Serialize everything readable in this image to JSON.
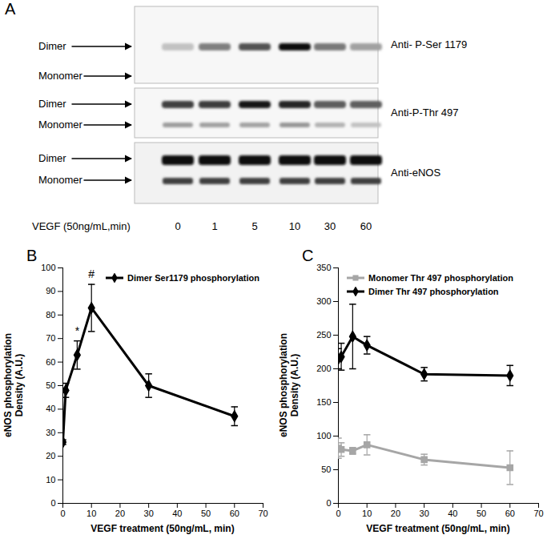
{
  "blot": {
    "panel": "A",
    "lane_title": "VEGF (50ng/mL,min)",
    "lanes": [
      0,
      1,
      5,
      10,
      30,
      60
    ],
    "strips": [
      {
        "antibody": "Anti- P-Ser 1179",
        "bands": [
          "Dimer",
          "Monomer"
        ]
      },
      {
        "antibody": "Anti-P-Thr 497",
        "bands": [
          "Dimer",
          "Monomer"
        ]
      },
      {
        "antibody": "Anti-eNOS",
        "bands": [
          "Dimer",
          "Monomer"
        ]
      }
    ]
  },
  "chart_data": [
    {
      "panel": "B",
      "type": "line",
      "xlabel": "VEGF treatment (50ng/mL, min)",
      "ylabel": [
        "eNOS phosphorylation",
        "Density (A.U.)"
      ],
      "x": [
        0,
        1,
        5,
        10,
        30,
        60
      ],
      "xlim": [
        0,
        70
      ],
      "xticks": [
        0,
        10,
        20,
        30,
        40,
        50,
        60,
        70
      ],
      "ylim": [
        0,
        100
      ],
      "yticks": [
        0,
        10,
        20,
        30,
        40,
        50,
        60,
        70,
        80,
        90,
        100
      ],
      "grid": false,
      "legend": "top-right",
      "series": [
        {
          "name": "Dimer Ser1179 phosphorylation",
          "color": "#000000",
          "marker": "diamond",
          "values": [
            26,
            48,
            63,
            83,
            50,
            37
          ],
          "errors": [
            1,
            3,
            6,
            10,
            5,
            4
          ]
        }
      ],
      "annotations": [
        {
          "x": 5,
          "text": "*"
        },
        {
          "x": 10,
          "text": "#"
        }
      ]
    },
    {
      "panel": "C",
      "type": "line",
      "xlabel": "VEGF treatment (50ng/mL, min)",
      "ylabel": [
        "eNOS phosphorylation",
        "Density (A.U.)"
      ],
      "x": [
        0,
        1,
        5,
        10,
        30,
        60
      ],
      "xlim": [
        0,
        70
      ],
      "xticks": [
        0,
        10,
        20,
        30,
        40,
        50,
        60,
        70
      ],
      "ylim": [
        0,
        350
      ],
      "yticks": [
        0,
        50,
        100,
        150,
        200,
        250,
        300,
        350
      ],
      "grid": false,
      "legend": "top-left",
      "series": [
        {
          "name": "Monomer Thr 497 phosphorylation",
          "color": "#a6a6a6",
          "marker": "square",
          "values": [
            82,
            80,
            78,
            87,
            65,
            53
          ],
          "errors": [
            15,
            10,
            5,
            15,
            8,
            25
          ]
        },
        {
          "name": "Dimer Thr 497 phosphorylation",
          "color": "#000000",
          "marker": "diamond",
          "values": [
            215,
            218,
            248,
            235,
            192,
            190
          ],
          "errors": [
            15,
            20,
            48,
            13,
            10,
            15
          ]
        }
      ]
    }
  ]
}
